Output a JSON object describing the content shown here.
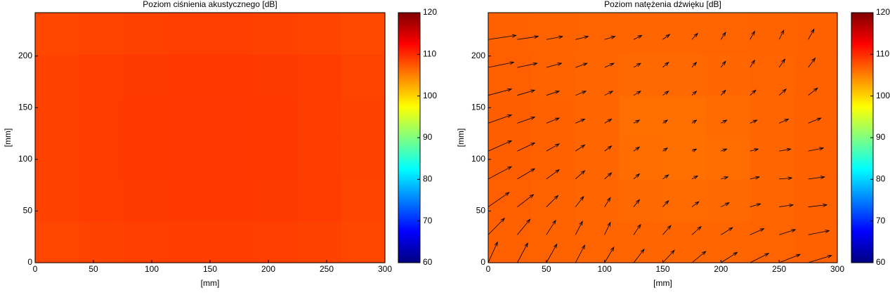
{
  "chart_data": [
    {
      "type": "heatmap",
      "title": "Poziom ciśnienia akustycznego [dB]",
      "xlabel": "[mm]",
      "ylabel": "[mm]",
      "xlim": [
        0,
        300
      ],
      "ylim": [
        0,
        242
      ],
      "xticks": [
        0,
        50,
        100,
        150,
        200,
        250,
        300
      ],
      "yticks": [
        0,
        50,
        100,
        150,
        200
      ],
      "colormap": "jet",
      "clim": [
        60,
        120
      ],
      "cticks": [
        60,
        70,
        80,
        90,
        100,
        110,
        120
      ],
      "z": [
        [
          108.4,
          108.6,
          108.8,
          108.9,
          108.9,
          108.8,
          108.6,
          108.3
        ],
        [
          108.6,
          108.9,
          109.1,
          109.2,
          109.2,
          109.1,
          108.9,
          108.5
        ],
        [
          108.7,
          109.0,
          109.2,
          109.3,
          109.3,
          109.2,
          109.0,
          108.6
        ],
        [
          108.7,
          109.0,
          109.2,
          109.3,
          109.3,
          109.2,
          109.0,
          108.6
        ],
        [
          108.6,
          108.9,
          109.1,
          109.2,
          109.2,
          109.1,
          108.9,
          108.5
        ],
        [
          108.3,
          108.5,
          108.7,
          108.8,
          108.8,
          108.7,
          108.5,
          108.2
        ]
      ]
    },
    {
      "type": "quiver-heatmap",
      "title": "Poziom natężenia dźwięku [dB]",
      "xlabel": "[mm]",
      "ylabel": "[mm]",
      "xlim": [
        0,
        300
      ],
      "ylim": [
        0,
        242
      ],
      "xticks": [
        0,
        50,
        100,
        150,
        200,
        250,
        300
      ],
      "yticks": [
        0,
        50,
        100,
        150,
        200
      ],
      "colormap": "jet",
      "clim": [
        60,
        120
      ],
      "cticks": [
        60,
        70,
        80,
        90,
        100,
        110,
        120
      ],
      "z": [
        [
          106.8,
          106.7,
          106.6,
          106.5,
          106.5,
          106.5,
          106.6,
          106.8
        ],
        [
          106.9,
          106.7,
          106.5,
          106.3,
          106.2,
          106.3,
          106.5,
          106.8
        ],
        [
          107.0,
          106.8,
          106.5,
          106.1,
          105.9,
          106.1,
          106.5,
          106.8
        ],
        [
          107.0,
          106.8,
          106.5,
          106.0,
          106.0,
          106.2,
          106.5,
          106.8
        ],
        [
          106.9,
          106.7,
          106.5,
          106.3,
          106.3,
          106.4,
          106.6,
          106.8
        ],
        [
          106.8,
          106.7,
          106.6,
          106.5,
          106.5,
          106.6,
          106.7,
          106.8
        ]
      ],
      "quiver": {
        "x": [
          0,
          25,
          50,
          75,
          100,
          125,
          150,
          175,
          200,
          225,
          250,
          275
        ],
        "y": [
          0,
          27,
          54,
          81,
          108,
          135,
          162,
          189,
          216
        ],
        "u": [
          [
            8,
            9,
            9,
            8,
            8,
            9,
            10,
            12,
            14,
            16,
            18,
            20
          ],
          [
            14,
            11,
            8,
            6,
            5,
            6,
            7,
            8,
            10,
            12,
            14,
            18
          ],
          [
            18,
            14,
            10,
            7,
            5,
            5,
            5,
            6,
            7,
            9,
            12,
            16
          ],
          [
            20,
            15,
            11,
            8,
            6,
            5,
            5,
            5,
            6,
            8,
            11,
            14
          ],
          [
            20,
            15,
            11,
            8,
            6,
            5,
            4,
            4,
            5,
            7,
            10,
            13
          ],
          [
            20,
            15,
            11,
            8,
            6,
            5,
            4,
            4,
            5,
            6,
            8,
            11
          ],
          [
            20,
            15,
            11,
            9,
            7,
            6,
            5,
            4,
            4,
            5,
            6,
            8
          ],
          [
            22,
            17,
            13,
            10,
            8,
            6,
            5,
            4,
            4,
            4,
            5,
            6
          ],
          [
            24,
            18,
            14,
            11,
            9,
            7,
            6,
            5,
            4,
            4,
            4,
            5
          ]
        ],
        "v": [
          [
            20,
            19,
            18,
            17,
            15,
            13,
            12,
            11,
            10,
            9,
            8,
            7
          ],
          [
            16,
            15,
            14,
            13,
            12,
            10,
            9,
            8,
            7,
            6,
            5,
            4
          ],
          [
            14,
            12,
            11,
            10,
            9,
            7,
            6,
            5,
            4,
            3,
            2,
            2
          ],
          [
            12,
            10,
            9,
            8,
            6,
            5,
            4,
            3,
            2,
            2,
            1,
            2
          ],
          [
            10,
            8,
            7,
            6,
            5,
            4,
            3,
            2,
            2,
            2,
            2,
            3
          ],
          [
            8,
            6,
            5,
            4,
            4,
            3,
            3,
            3,
            3,
            3,
            4,
            5
          ],
          [
            6,
            5,
            4,
            4,
            4,
            4,
            4,
            4,
            5,
            5,
            6,
            7
          ],
          [
            5,
            4,
            4,
            4,
            4,
            4,
            5,
            5,
            6,
            7,
            8,
            9
          ],
          [
            4,
            3,
            3,
            3,
            3,
            4,
            5,
            6,
            7,
            8,
            9,
            10
          ]
        ]
      }
    }
  ]
}
